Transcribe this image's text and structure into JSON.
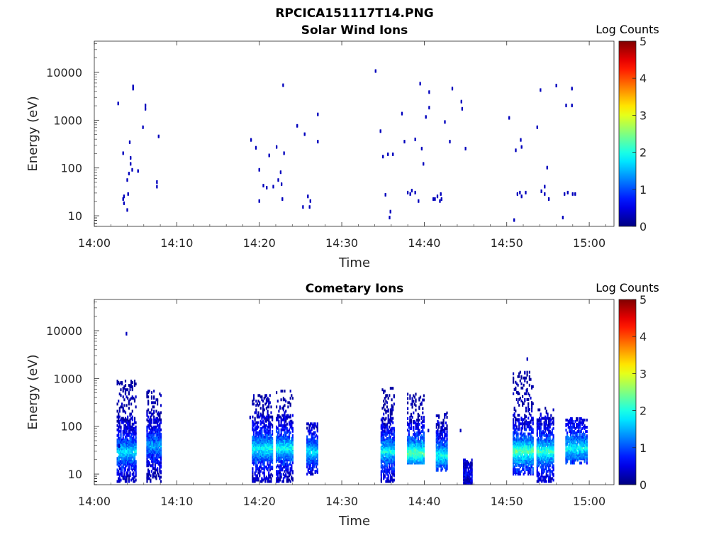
{
  "figure": {
    "title": "RPCICA151117T14.PNG"
  },
  "chart_data": [
    {
      "type": "heatmap",
      "title": "Solar Wind Ions",
      "xlabel": "Time",
      "ylabel": "Energy (eV)",
      "x_ticks": [
        "14:00",
        "14:10",
        "14:20",
        "14:30",
        "14:40",
        "14:50",
        "15:00"
      ],
      "x_range_min": [
        0,
        63
      ],
      "y_ticks": [
        "10",
        "100",
        "1000",
        "10000"
      ],
      "y_scale": "log",
      "y_range_eV": [
        6,
        45000
      ],
      "colorbar": {
        "label": "Log Counts",
        "ticks": [
          "0",
          "1",
          "2",
          "3",
          "4",
          "5"
        ],
        "range": [
          0,
          5
        ],
        "colormap": "jet"
      },
      "points": [
        [
          2.9,
          2200,
          0.3
        ],
        [
          3.5,
          200,
          0.3
        ],
        [
          3.5,
          22,
          0.3
        ],
        [
          3.6,
          18,
          0.3
        ],
        [
          3.6,
          25,
          0.3
        ],
        [
          4.0,
          13,
          0.3
        ],
        [
          4.2,
          75,
          0.3
        ],
        [
          4.3,
          340,
          0.3
        ],
        [
          4.4,
          120,
          0.3
        ],
        [
          4.4,
          160,
          0.3
        ],
        [
          4.6,
          90,
          0.3
        ],
        [
          4.7,
          5000,
          0.3
        ],
        [
          4.7,
          4500,
          0.3
        ],
        [
          5.3,
          85,
          0.3
        ],
        [
          5.9,
          700,
          0.3
        ],
        [
          6.2,
          2000,
          0.3
        ],
        [
          6.2,
          1700,
          0.3
        ],
        [
          7.6,
          50,
          0.3
        ],
        [
          7.6,
          40,
          0.3
        ],
        [
          7.8,
          450,
          0.3
        ],
        [
          4.0,
          55,
          0.3
        ],
        [
          4.1,
          28,
          0.3
        ],
        [
          19.0,
          380,
          0.3
        ],
        [
          19.6,
          260,
          0.3
        ],
        [
          20.0,
          90,
          0.3
        ],
        [
          20.0,
          20,
          0.3
        ],
        [
          20.5,
          42,
          0.3
        ],
        [
          20.9,
          38,
          0.3
        ],
        [
          21.2,
          180,
          0.3
        ],
        [
          21.7,
          40,
          0.3
        ],
        [
          22.1,
          270,
          0.3
        ],
        [
          22.3,
          55,
          0.3
        ],
        [
          22.6,
          80,
          0.3
        ],
        [
          22.7,
          45,
          0.3
        ],
        [
          22.9,
          5300,
          0.3
        ],
        [
          23.0,
          200,
          0.3
        ],
        [
          22.8,
          22,
          0.3
        ],
        [
          24.6,
          750,
          0.3
        ],
        [
          25.5,
          500,
          0.3
        ],
        [
          25.9,
          25,
          0.3
        ],
        [
          26.2,
          20,
          0.3
        ],
        [
          25.3,
          15,
          0.3
        ],
        [
          26.1,
          15,
          0.3
        ],
        [
          27.1,
          1300,
          0.3
        ],
        [
          27.1,
          350,
          0.3
        ],
        [
          34.1,
          10500,
          0.3
        ],
        [
          34.7,
          580,
          0.3
        ],
        [
          35.0,
          170,
          0.3
        ],
        [
          35.3,
          27,
          0.3
        ],
        [
          35.6,
          190,
          0.3
        ],
        [
          35.8,
          9,
          0.3
        ],
        [
          35.9,
          12,
          0.3
        ],
        [
          36.2,
          190,
          0.3
        ],
        [
          37.3,
          1350,
          0.3
        ],
        [
          37.6,
          350,
          0.3
        ],
        [
          38.0,
          30,
          0.3
        ],
        [
          38.3,
          28,
          0.3
        ],
        [
          38.5,
          33,
          0.3
        ],
        [
          38.9,
          30,
          0.3
        ],
        [
          38.9,
          390,
          0.3
        ],
        [
          39.3,
          20,
          0.3
        ],
        [
          39.5,
          5700,
          0.3
        ],
        [
          39.7,
          250,
          0.3
        ],
        [
          39.9,
          120,
          0.3
        ],
        [
          40.2,
          1150,
          0.3
        ],
        [
          40.6,
          3800,
          0.3
        ],
        [
          40.6,
          1800,
          0.3
        ],
        [
          41.1,
          22,
          0.3
        ],
        [
          41.3,
          22,
          0.3
        ],
        [
          41.6,
          25,
          0.3
        ],
        [
          41.9,
          20,
          0.3
        ],
        [
          42.0,
          28,
          0.3
        ],
        [
          42.1,
          22,
          0.3
        ],
        [
          42.5,
          900,
          0.3
        ],
        [
          43.1,
          350,
          0.3
        ],
        [
          43.4,
          4500,
          0.3
        ],
        [
          44.5,
          2400,
          0.3
        ],
        [
          44.6,
          1700,
          0.3
        ],
        [
          45.0,
          250,
          0.3
        ],
        [
          50.3,
          1100,
          0.3
        ],
        [
          50.9,
          8,
          0.3
        ],
        [
          51.1,
          230,
          0.3
        ],
        [
          51.3,
          28,
          0.3
        ],
        [
          51.6,
          30,
          0.3
        ],
        [
          51.8,
          25,
          0.3
        ],
        [
          51.7,
          380,
          0.3
        ],
        [
          51.8,
          270,
          0.3
        ],
        [
          52.3,
          30,
          0.3
        ],
        [
          53.7,
          700,
          0.3
        ],
        [
          54.1,
          4200,
          0.3
        ],
        [
          54.2,
          32,
          0.3
        ],
        [
          54.6,
          28,
          0.3
        ],
        [
          54.6,
          40,
          0.3
        ],
        [
          54.9,
          100,
          0.3
        ],
        [
          55.1,
          22,
          0.3
        ],
        [
          56.0,
          5200,
          0.3
        ],
        [
          56.8,
          9,
          0.3
        ],
        [
          57.0,
          28,
          0.3
        ],
        [
          57.2,
          2000,
          0.3
        ],
        [
          57.4,
          30,
          0.3
        ],
        [
          57.9,
          2000,
          0.3
        ],
        [
          57.9,
          4500,
          0.3
        ],
        [
          58.0,
          28,
          0.3
        ],
        [
          58.3,
          28,
          0.3
        ]
      ]
    },
    {
      "type": "heatmap",
      "title": "Cometary Ions",
      "xlabel": "Time",
      "ylabel": "Energy (eV)",
      "x_ticks": [
        "14:00",
        "14:10",
        "14:20",
        "14:30",
        "14:40",
        "14:50",
        "15:00"
      ],
      "x_range_min": [
        0,
        63
      ],
      "y_ticks": [
        "10",
        "100",
        "1000",
        "10000"
      ],
      "y_scale": "log",
      "y_range_eV": [
        6,
        45000
      ],
      "colorbar": {
        "label": "Log Counts",
        "ticks": [
          "0",
          "1",
          "2",
          "3",
          "4",
          "5"
        ],
        "range": [
          0,
          5
        ],
        "colormap": "jet"
      },
      "bursts": [
        {
          "t0": 2.8,
          "t1": 5.1,
          "emin": 7,
          "emax": 900,
          "peak_e": 30,
          "peak": 1.8
        },
        {
          "t0": 6.4,
          "t1": 8.1,
          "emin": 7,
          "emax": 550,
          "peak_e": 40,
          "peak": 1.5
        },
        {
          "t0": 19.2,
          "t1": 21.6,
          "emin": 7,
          "emax": 450,
          "peak_e": 35,
          "peak": 2.0
        },
        {
          "t0": 22.1,
          "t1": 24.1,
          "emin": 7,
          "emax": 550,
          "peak_e": 35,
          "peak": 2.0
        },
        {
          "t0": 25.8,
          "t1": 27.1,
          "emin": 10,
          "emax": 120,
          "peak_e": 30,
          "peak": 1.8
        },
        {
          "t0": 34.8,
          "t1": 36.4,
          "emin": 7,
          "emax": 650,
          "peak_e": 30,
          "peak": 2.0
        },
        {
          "t0": 38.0,
          "t1": 40.1,
          "emin": 17,
          "emax": 500,
          "peak_e": 28,
          "peak": 2.4
        },
        {
          "t0": 41.5,
          "t1": 42.9,
          "emin": 12,
          "emax": 200,
          "peak_e": 25,
          "peak": 2.0
        },
        {
          "t0": 44.8,
          "t1": 45.8,
          "emin": 6.5,
          "emax": 20,
          "peak_e": 10,
          "peak": 0.6
        },
        {
          "t0": 50.8,
          "t1": 53.2,
          "emin": 10,
          "emax": 1500,
          "peak_e": 30,
          "peak": 2.4
        },
        {
          "t0": 53.7,
          "t1": 55.8,
          "emin": 7,
          "emax": 250,
          "peak_e": 30,
          "peak": 2.2
        },
        {
          "t0": 57.2,
          "t1": 59.8,
          "emin": 17,
          "emax": 150,
          "peak_e": 35,
          "peak": 2.0
        }
      ],
      "points": [
        [
          3.9,
          8500,
          0.3
        ],
        [
          52.5,
          2500,
          0.3
        ],
        [
          52.2,
          1300,
          0.3
        ],
        [
          52.4,
          550,
          0.3
        ],
        [
          40.5,
          80,
          0.3
        ],
        [
          44.4,
          80,
          0.3
        ],
        [
          3.0,
          38,
          0.3
        ],
        [
          18.9,
          150,
          0.3
        ]
      ]
    }
  ]
}
